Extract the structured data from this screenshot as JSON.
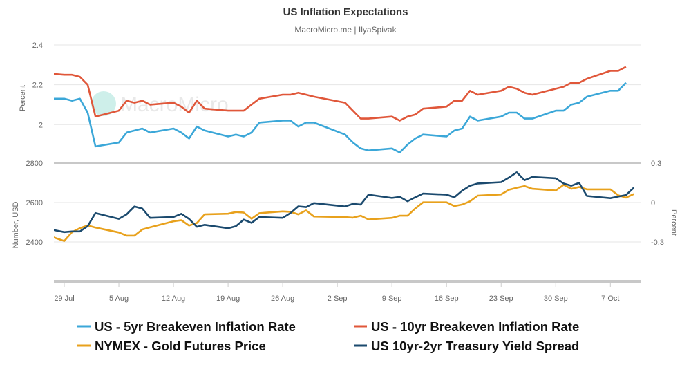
{
  "chart_data": {
    "type": "line",
    "title": "US Inflation Expectations",
    "subtitle": "MacroMicro.me | IlyaSpivak",
    "watermark": "MacroMicro",
    "grid": true,
    "legend_position": "bottom",
    "x_ticks": [
      "29 Jul",
      "5 Aug",
      "12 Aug",
      "19 Aug",
      "26 Aug",
      "2 Sep",
      "9 Sep",
      "16 Sep",
      "23 Sep",
      "30 Sep",
      "7 Oct"
    ],
    "x_tick_dates": [
      "2024-07-29",
      "2024-08-05",
      "2024-08-12",
      "2024-08-19",
      "2024-08-26",
      "2024-09-02",
      "2024-09-09",
      "2024-09-16",
      "2024-09-23",
      "2024-09-30",
      "2024-10-07"
    ],
    "x": [
      "2024-07-26",
      "2024-07-29",
      "2024-07-30",
      "2024-07-31",
      "2024-08-01",
      "2024-08-02",
      "2024-08-05",
      "2024-08-06",
      "2024-08-07",
      "2024-08-08",
      "2024-08-09",
      "2024-08-12",
      "2024-08-13",
      "2024-08-14",
      "2024-08-15",
      "2024-08-16",
      "2024-08-19",
      "2024-08-20",
      "2024-08-21",
      "2024-08-22",
      "2024-08-23",
      "2024-08-26",
      "2024-08-27",
      "2024-08-28",
      "2024-08-29",
      "2024-08-30",
      "2024-09-03",
      "2024-09-04",
      "2024-09-05",
      "2024-09-06",
      "2024-09-09",
      "2024-09-10",
      "2024-09-11",
      "2024-09-12",
      "2024-09-13",
      "2024-09-16",
      "2024-09-17",
      "2024-09-18",
      "2024-09-19",
      "2024-09-20",
      "2024-09-23",
      "2024-09-24",
      "2024-09-25",
      "2024-09-26",
      "2024-09-27",
      "2024-09-30",
      "2024-10-01",
      "2024-10-02",
      "2024-10-03",
      "2024-10-04",
      "2024-10-07",
      "2024-10-08",
      "2024-10-09",
      "2024-10-10"
    ],
    "panes": [
      {
        "y_left": {
          "label": "Percent",
          "ticks": [
            "2.4",
            "2.2",
            "2"
          ],
          "range": [
            1.81,
            2.4
          ]
        },
        "series": [
          {
            "name": "US - 5yr Breakeven Inflation Rate",
            "color": "#3ba7d8",
            "axis": "left",
            "values": [
              2.13,
              2.13,
              2.12,
              2.13,
              2.06,
              1.89,
              1.91,
              1.96,
              1.97,
              1.98,
              1.96,
              1.98,
              1.96,
              1.93,
              1.99,
              1.97,
              1.94,
              1.95,
              1.94,
              1.96,
              2.01,
              2.02,
              2.02,
              1.99,
              2.01,
              2.01,
              1.95,
              1.91,
              1.88,
              1.87,
              1.88,
              1.86,
              1.9,
              1.93,
              1.95,
              1.94,
              1.97,
              1.98,
              2.04,
              2.02,
              2.04,
              2.06,
              2.06,
              2.03,
              2.03,
              2.07,
              2.07,
              2.1,
              2.11,
              2.14,
              2.17,
              2.17,
              2.21,
              null
            ]
          },
          {
            "name": "US - 10yr Breakeven Inflation Rate",
            "color": "#e0573a",
            "axis": "left",
            "values": [
              2.26,
              2.25,
              2.25,
              2.24,
              2.2,
              2.04,
              2.07,
              2.12,
              2.11,
              2.12,
              2.1,
              2.11,
              2.09,
              2.06,
              2.12,
              2.08,
              2.07,
              2.07,
              2.07,
              2.1,
              2.13,
              2.15,
              2.15,
              2.16,
              2.15,
              2.14,
              2.11,
              2.07,
              2.03,
              2.03,
              2.04,
              2.02,
              2.04,
              2.05,
              2.08,
              2.09,
              2.12,
              2.12,
              2.17,
              2.15,
              2.17,
              2.19,
              2.18,
              2.16,
              2.15,
              2.18,
              2.19,
              2.21,
              2.21,
              2.23,
              2.27,
              2.27,
              2.29,
              null
            ]
          }
        ]
      },
      {
        "y_left": {
          "label": "Number, USD",
          "ticks": [
            "2800",
            "2600",
            "2400"
          ],
          "range": [
            2200,
            2800
          ]
        },
        "y_right": {
          "label": "Percent",
          "ticks": [
            "0.3",
            "0",
            "-0.3"
          ],
          "range": [
            -0.6,
            0.3
          ]
        },
        "series": [
          {
            "name": "NYMEX - Gold Futures Price",
            "color": "#e8a11c",
            "axis": "left",
            "values": [
              2445,
              2405,
              2450,
              2470,
              2484,
              2473,
              2448,
              2432,
              2432,
              2463,
              2474,
              2505,
              2510,
              2483,
              2496,
              2540,
              2543,
              2552,
              2549,
              2518,
              2546,
              2555,
              2553,
              2540,
              2560,
              2529,
              2526,
              2523,
              2533,
              2514,
              2522,
              2533,
              2533,
              2570,
              2601,
              2601,
              2582,
              2590,
              2606,
              2635,
              2641,
              2665,
              2675,
              2684,
              2670,
              2661,
              2690,
              2670,
              2679,
              2667,
              2667,
              2637,
              2625,
              2643
            ]
          },
          {
            "name": "US 10yr-2yr Treasury Yield Spread",
            "color": "#1b4a6e",
            "axis": "right",
            "values": [
              -0.19,
              -0.225,
              -0.22,
              -0.22,
              -0.18,
              -0.08,
              -0.124,
              -0.09,
              -0.03,
              -0.046,
              -0.117,
              -0.11,
              -0.086,
              -0.124,
              -0.185,
              -0.17,
              -0.196,
              -0.18,
              -0.13,
              -0.155,
              -0.11,
              -0.117,
              -0.08,
              -0.029,
              -0.035,
              -0.004,
              -0.03,
              -0.01,
              -0.015,
              0.06,
              0.035,
              0.043,
              0.01,
              0.04,
              0.068,
              0.06,
              0.04,
              0.09,
              0.128,
              0.145,
              0.155,
              0.19,
              0.23,
              0.17,
              0.195,
              0.185,
              0.145,
              0.128,
              0.15,
              0.05,
              0.033,
              0.045,
              0.057,
              0.113
            ]
          }
        ]
      }
    ],
    "legend": [
      {
        "label": "US - 5yr Breakeven Inflation Rate",
        "color": "#3ba7d8"
      },
      {
        "label": "US - 10yr Breakeven Inflation Rate",
        "color": "#e0573a"
      },
      {
        "label": "NYMEX - Gold Futures Price",
        "color": "#e8a11c"
      },
      {
        "label": "US 10yr-2yr Treasury Yield Spread",
        "color": "#1b4a6e"
      }
    ]
  }
}
